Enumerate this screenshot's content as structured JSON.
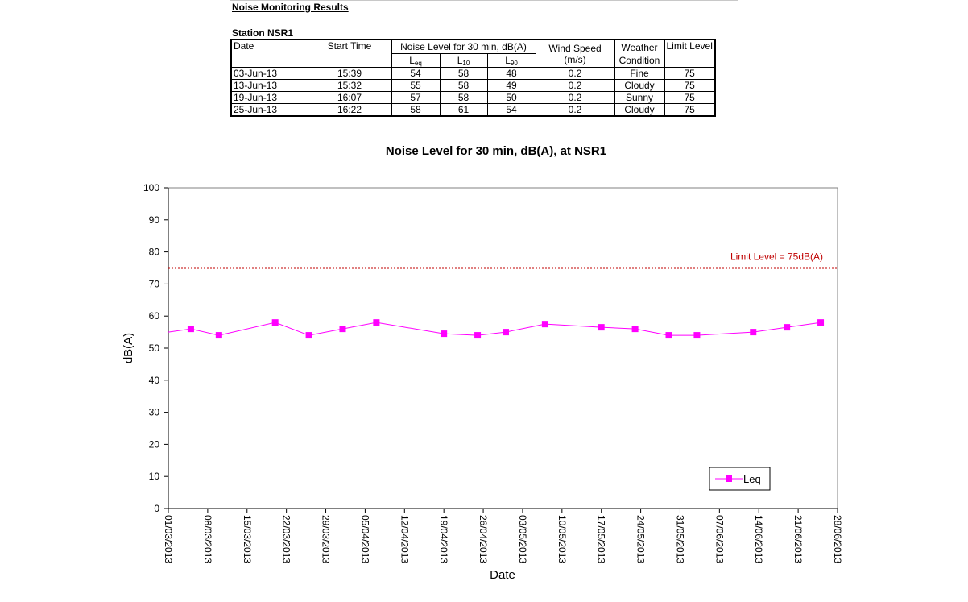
{
  "report": {
    "title": "Noise Monitoring Results",
    "station": "Station NSR1"
  },
  "table": {
    "headers": {
      "date": "Date",
      "start_time": "Start Time",
      "noise_level": "Noise Level for 30 min, dB(A)",
      "wind_speed": "Wind Speed",
      "wind_unit": "(m/s)",
      "weather": "Weather Condition",
      "limit": "Limit Level",
      "leq_main": "L",
      "leq_sub": "eq",
      "l10_main": "L",
      "l10_sub": "10",
      "l90_main": "L",
      "l90_sub": "90"
    },
    "rows": [
      {
        "date": "03-Jun-13",
        "time": "15:39",
        "leq": "54",
        "l10": "58",
        "l90": "48",
        "wind": "0.2",
        "weather": "Fine",
        "limit": "75"
      },
      {
        "date": "13-Jun-13",
        "time": "15:32",
        "leq": "55",
        "l10": "58",
        "l90": "49",
        "wind": "0.2",
        "weather": "Cloudy",
        "limit": "75"
      },
      {
        "date": "19-Jun-13",
        "time": "16:07",
        "leq": "57",
        "l10": "58",
        "l90": "50",
        "wind": "0.2",
        "weather": "Sunny",
        "limit": "75"
      },
      {
        "date": "25-Jun-13",
        "time": "16:22",
        "leq": "58",
        "l10": "61",
        "l90": "54",
        "wind": "0.2",
        "weather": "Cloudy",
        "limit": "75"
      }
    ]
  },
  "chart_data": {
    "type": "line",
    "title": "Noise Level for 30 min, dB(A), at NSR1",
    "xlabel": "Date",
    "ylabel": "dB(A)",
    "ylim": [
      0,
      100
    ],
    "yticks": [
      0,
      10,
      20,
      30,
      40,
      50,
      60,
      70,
      80,
      90,
      100
    ],
    "xlim": [
      "2013-03-01",
      "2013-06-28"
    ],
    "xticks": [
      "01/03/2013",
      "08/03/2013",
      "15/03/2013",
      "22/03/2013",
      "29/03/2013",
      "05/04/2013",
      "12/04/2013",
      "19/04/2013",
      "26/04/2013",
      "03/05/2013",
      "10/05/2013",
      "17/05/2013",
      "24/05/2013",
      "31/05/2013",
      "07/06/2013",
      "14/06/2013",
      "21/06/2013",
      "28/06/2013"
    ],
    "grid": false,
    "legend_position": "bottom-right",
    "series": [
      {
        "name": "Leq",
        "color": "#ff00ff",
        "marker": "square",
        "x": [
          "2013-03-01",
          "2013-03-05",
          "2013-03-10",
          "2013-03-20",
          "2013-03-26",
          "2013-04-01",
          "2013-04-07",
          "2013-04-19",
          "2013-04-25",
          "2013-04-30",
          "2013-05-07",
          "2013-05-17",
          "2013-05-23",
          "2013-05-29",
          "2013-06-03",
          "2013-06-13",
          "2013-06-19",
          "2013-06-25"
        ],
        "y": [
          55,
          56,
          54,
          58,
          54,
          56,
          58,
          54.5,
          54,
          55,
          57.5,
          56.5,
          56,
          54,
          54,
          55,
          56.5,
          58
        ],
        "first_point_marker": false
      }
    ],
    "limit_line": {
      "value": 75,
      "label": "Limit Level  = 75dB(A)",
      "color": "#c00000",
      "style": "dotted"
    }
  }
}
